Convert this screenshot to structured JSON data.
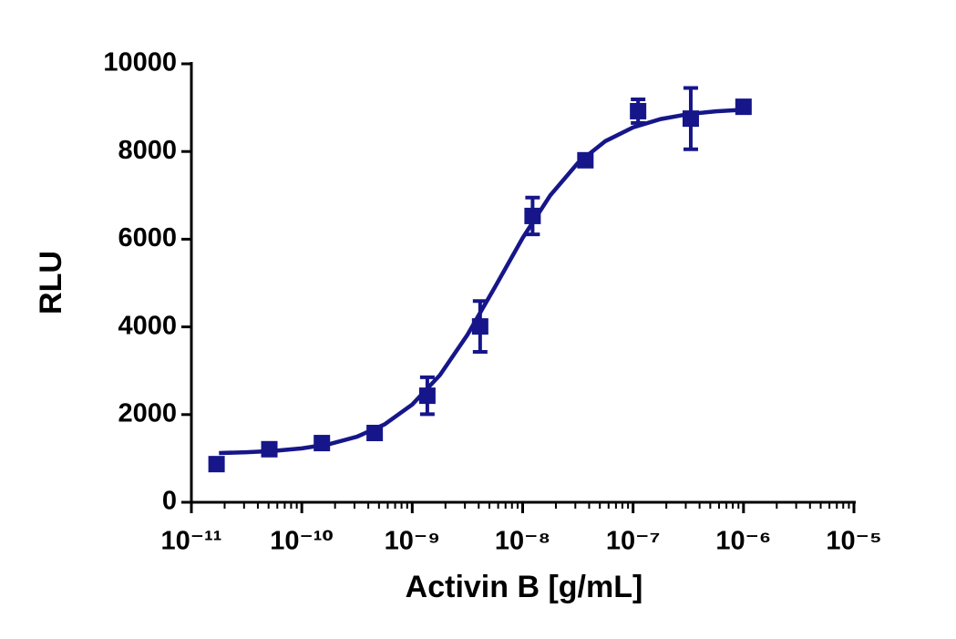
{
  "chart_data": {
    "type": "scatter",
    "xlabel": "Activin B [g/mL]",
    "ylabel": "RLU",
    "xscale": "log",
    "xlim": [
      1e-11,
      1e-05
    ],
    "xticks": [
      {
        "value": 1e-11,
        "label": "10⁻¹¹"
      },
      {
        "value": 1e-10,
        "label": "10⁻¹⁰"
      },
      {
        "value": 1e-09,
        "label": "10⁻⁹"
      },
      {
        "value": 1e-08,
        "label": "10⁻⁸"
      },
      {
        "value": 1e-07,
        "label": "10⁻⁷"
      },
      {
        "value": 1e-06,
        "label": "10⁻⁶"
      },
      {
        "value": 1e-05,
        "label": "10⁻⁵"
      }
    ],
    "xminorticks": true,
    "ylim": [
      0,
      10000
    ],
    "yticks": [
      0,
      2000,
      4000,
      6000,
      8000,
      10000
    ],
    "color": "#16168a",
    "points": {
      "x": [
        1.69e-11,
        5.08e-11,
        1.52e-10,
        4.57e-10,
        1.37e-09,
        4.12e-09,
        1.23e-08,
        3.7e-08,
        1.11e-07,
        3.33e-07,
        1e-06
      ],
      "values": [
        870,
        1210,
        1350,
        1580,
        2430,
        4010,
        6530,
        7800,
        8920,
        8750,
        9020
      ],
      "errors": [
        60,
        40,
        50,
        40,
        420,
        580,
        420,
        100,
        270,
        700,
        80
      ]
    },
    "fit": {
      "x": [
        1.78e-11,
        3.16e-11,
        5.62e-11,
        1e-10,
        1.78e-10,
        3.16e-10,
        5.62e-10,
        1e-09,
        1.78e-09,
        3.16e-09,
        5.62e-09,
        1e-08,
        1.78e-08,
        3.16e-08,
        5.62e-08,
        1e-07,
        1.78e-07,
        3.16e-07,
        5.62e-07,
        1e-06
      ],
      "values": [
        1123,
        1141,
        1173,
        1229,
        1326,
        1494,
        1775,
        2228,
        2900,
        3819,
        4913,
        6029,
        7000,
        7736,
        8236,
        8551,
        8741,
        8853,
        8916,
        8953
      ]
    }
  }
}
